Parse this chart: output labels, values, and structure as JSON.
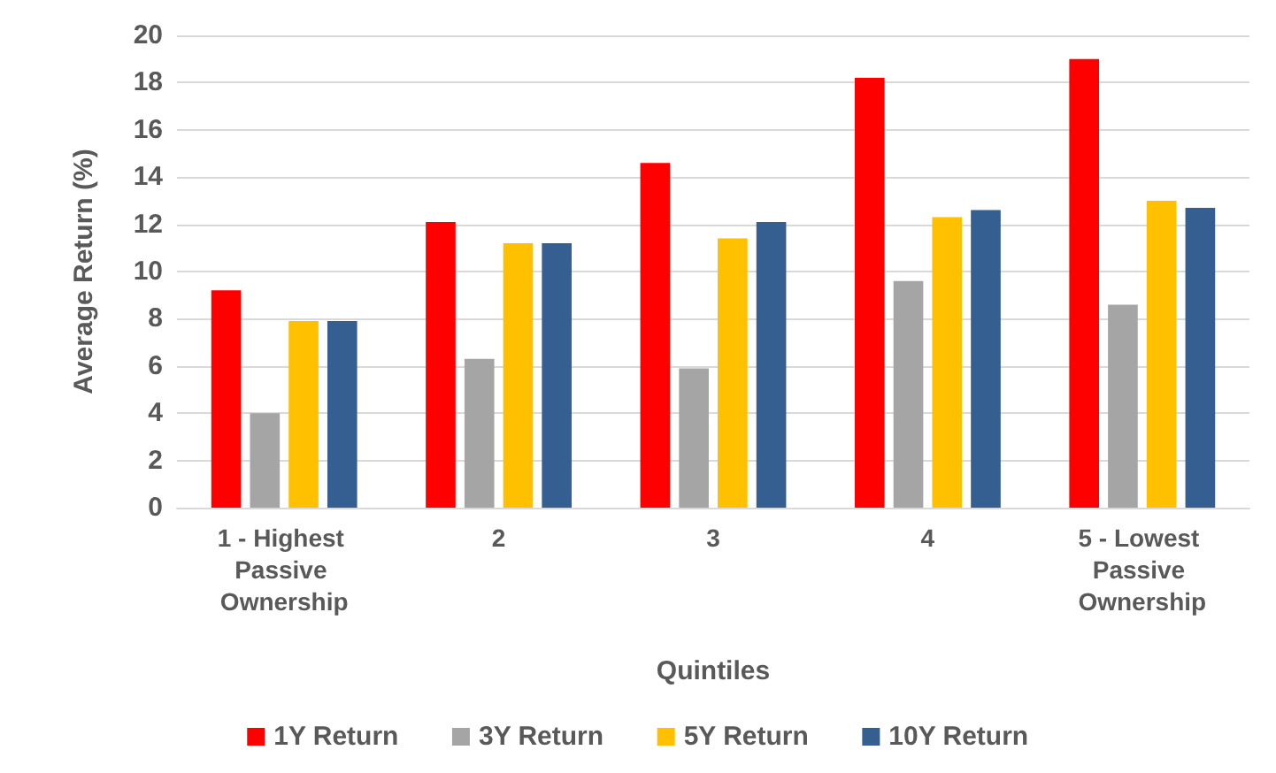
{
  "chart_data": {
    "type": "bar",
    "xlabel": "Quintiles",
    "ylabel": "Average Return (%)",
    "categories": [
      "1 - Highest Passive Ownership",
      "2",
      "3",
      "4",
      "5 - Lowest Passive Ownership"
    ],
    "series": [
      {
        "name": "1Y Return",
        "color": "#ff0000",
        "values": [
          9.2,
          12.1,
          14.6,
          18.2,
          19.0
        ]
      },
      {
        "name": "3Y Return",
        "color": "#a5a5a5",
        "values": [
          4.0,
          6.3,
          5.9,
          9.6,
          8.6
        ]
      },
      {
        "name": "5Y Return",
        "color": "#ffc000",
        "values": [
          7.9,
          11.2,
          11.4,
          12.3,
          13.0
        ]
      },
      {
        "name": "10Y Return",
        "color": "#355f91",
        "values": [
          7.9,
          11.2,
          12.1,
          12.6,
          12.7
        ]
      }
    ],
    "ylim": [
      0,
      20
    ],
    "yticks": [
      0,
      2,
      4,
      6,
      8,
      10,
      12,
      14,
      16,
      18,
      20
    ],
    "grid": "y",
    "legend": "bottom"
  }
}
